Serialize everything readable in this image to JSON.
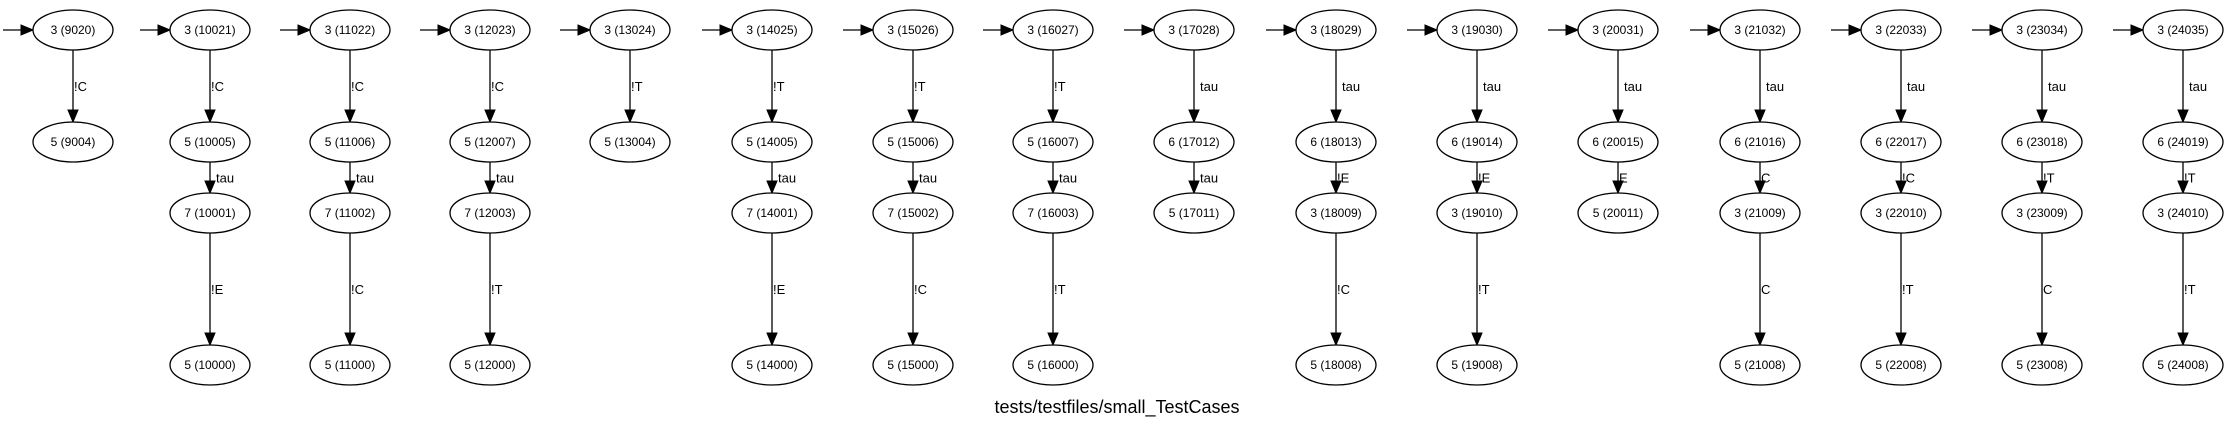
{
  "title": "tests/testfiles/small_TestCases",
  "colors": {
    "stroke": "#000000",
    "fill": "#ffffff",
    "background": "#ffffff"
  },
  "columns": [
    {
      "id": "9020",
      "nodes": [
        "3 (9020)",
        "5 (9004)"
      ],
      "edges": [
        "!C"
      ]
    },
    {
      "id": "10021",
      "nodes": [
        "3 (10021)",
        "5 (10005)",
        "7 (10001)",
        "5 (10000)"
      ],
      "edges": [
        "!C",
        "tau",
        "!E"
      ]
    },
    {
      "id": "11022",
      "nodes": [
        "3 (11022)",
        "5 (11006)",
        "7 (11002)",
        "5 (11000)"
      ],
      "edges": [
        "!C",
        "tau",
        "!C"
      ]
    },
    {
      "id": "12023",
      "nodes": [
        "3 (12023)",
        "5 (12007)",
        "7 (12003)",
        "5 (12000)"
      ],
      "edges": [
        "!C",
        "tau",
        "!T"
      ]
    },
    {
      "id": "13024",
      "nodes": [
        "3 (13024)",
        "5 (13004)"
      ],
      "edges": [
        "!T"
      ]
    },
    {
      "id": "14025",
      "nodes": [
        "3 (14025)",
        "5 (14005)",
        "7 (14001)",
        "5 (14000)"
      ],
      "edges": [
        "!T",
        "tau",
        "!E"
      ]
    },
    {
      "id": "15026",
      "nodes": [
        "3 (15026)",
        "5 (15006)",
        "7 (15002)",
        "5 (15000)"
      ],
      "edges": [
        "!T",
        "tau",
        "!C"
      ]
    },
    {
      "id": "16027",
      "nodes": [
        "3 (16027)",
        "5 (16007)",
        "7 (16003)",
        "5 (16000)"
      ],
      "edges": [
        "!T",
        "tau",
        "!T"
      ]
    },
    {
      "id": "17028",
      "nodes": [
        "3 (17028)",
        "6 (17012)",
        "5 (17011)"
      ],
      "edges": [
        "tau",
        "tau"
      ]
    },
    {
      "id": "18029",
      "nodes": [
        "3 (18029)",
        "6 (18013)",
        "3 (18009)",
        "5 (18008)"
      ],
      "edges": [
        "tau",
        "!E",
        "!C"
      ]
    },
    {
      "id": "19030",
      "nodes": [
        "3 (19030)",
        "6 (19014)",
        "3 (19010)",
        "5 (19008)"
      ],
      "edges": [
        "tau",
        "!E",
        "!T"
      ]
    },
    {
      "id": "20031",
      "nodes": [
        "3 (20031)",
        "6 (20015)",
        "5 (20011)"
      ],
      "edges": [
        "tau",
        "E"
      ]
    },
    {
      "id": "21032",
      "nodes": [
        "3 (21032)",
        "6 (21016)",
        "3 (21009)",
        "5 (21008)"
      ],
      "edges": [
        "tau",
        "C",
        "C"
      ]
    },
    {
      "id": "22033",
      "nodes": [
        "3 (22033)",
        "6 (22017)",
        "3 (22010)",
        "5 (22008)"
      ],
      "edges": [
        "tau",
        "!C",
        "!T"
      ]
    },
    {
      "id": "23034",
      "nodes": [
        "3 (23034)",
        "6 (23018)",
        "3 (23009)",
        "5 (23008)"
      ],
      "edges": [
        "tau",
        "!T",
        "C"
      ]
    },
    {
      "id": "24035",
      "nodes": [
        "3 (24035)",
        "6 (24019)",
        "3 (24010)",
        "5 (24008)"
      ],
      "edges": [
        "tau",
        "!T",
        "!T"
      ]
    }
  ]
}
